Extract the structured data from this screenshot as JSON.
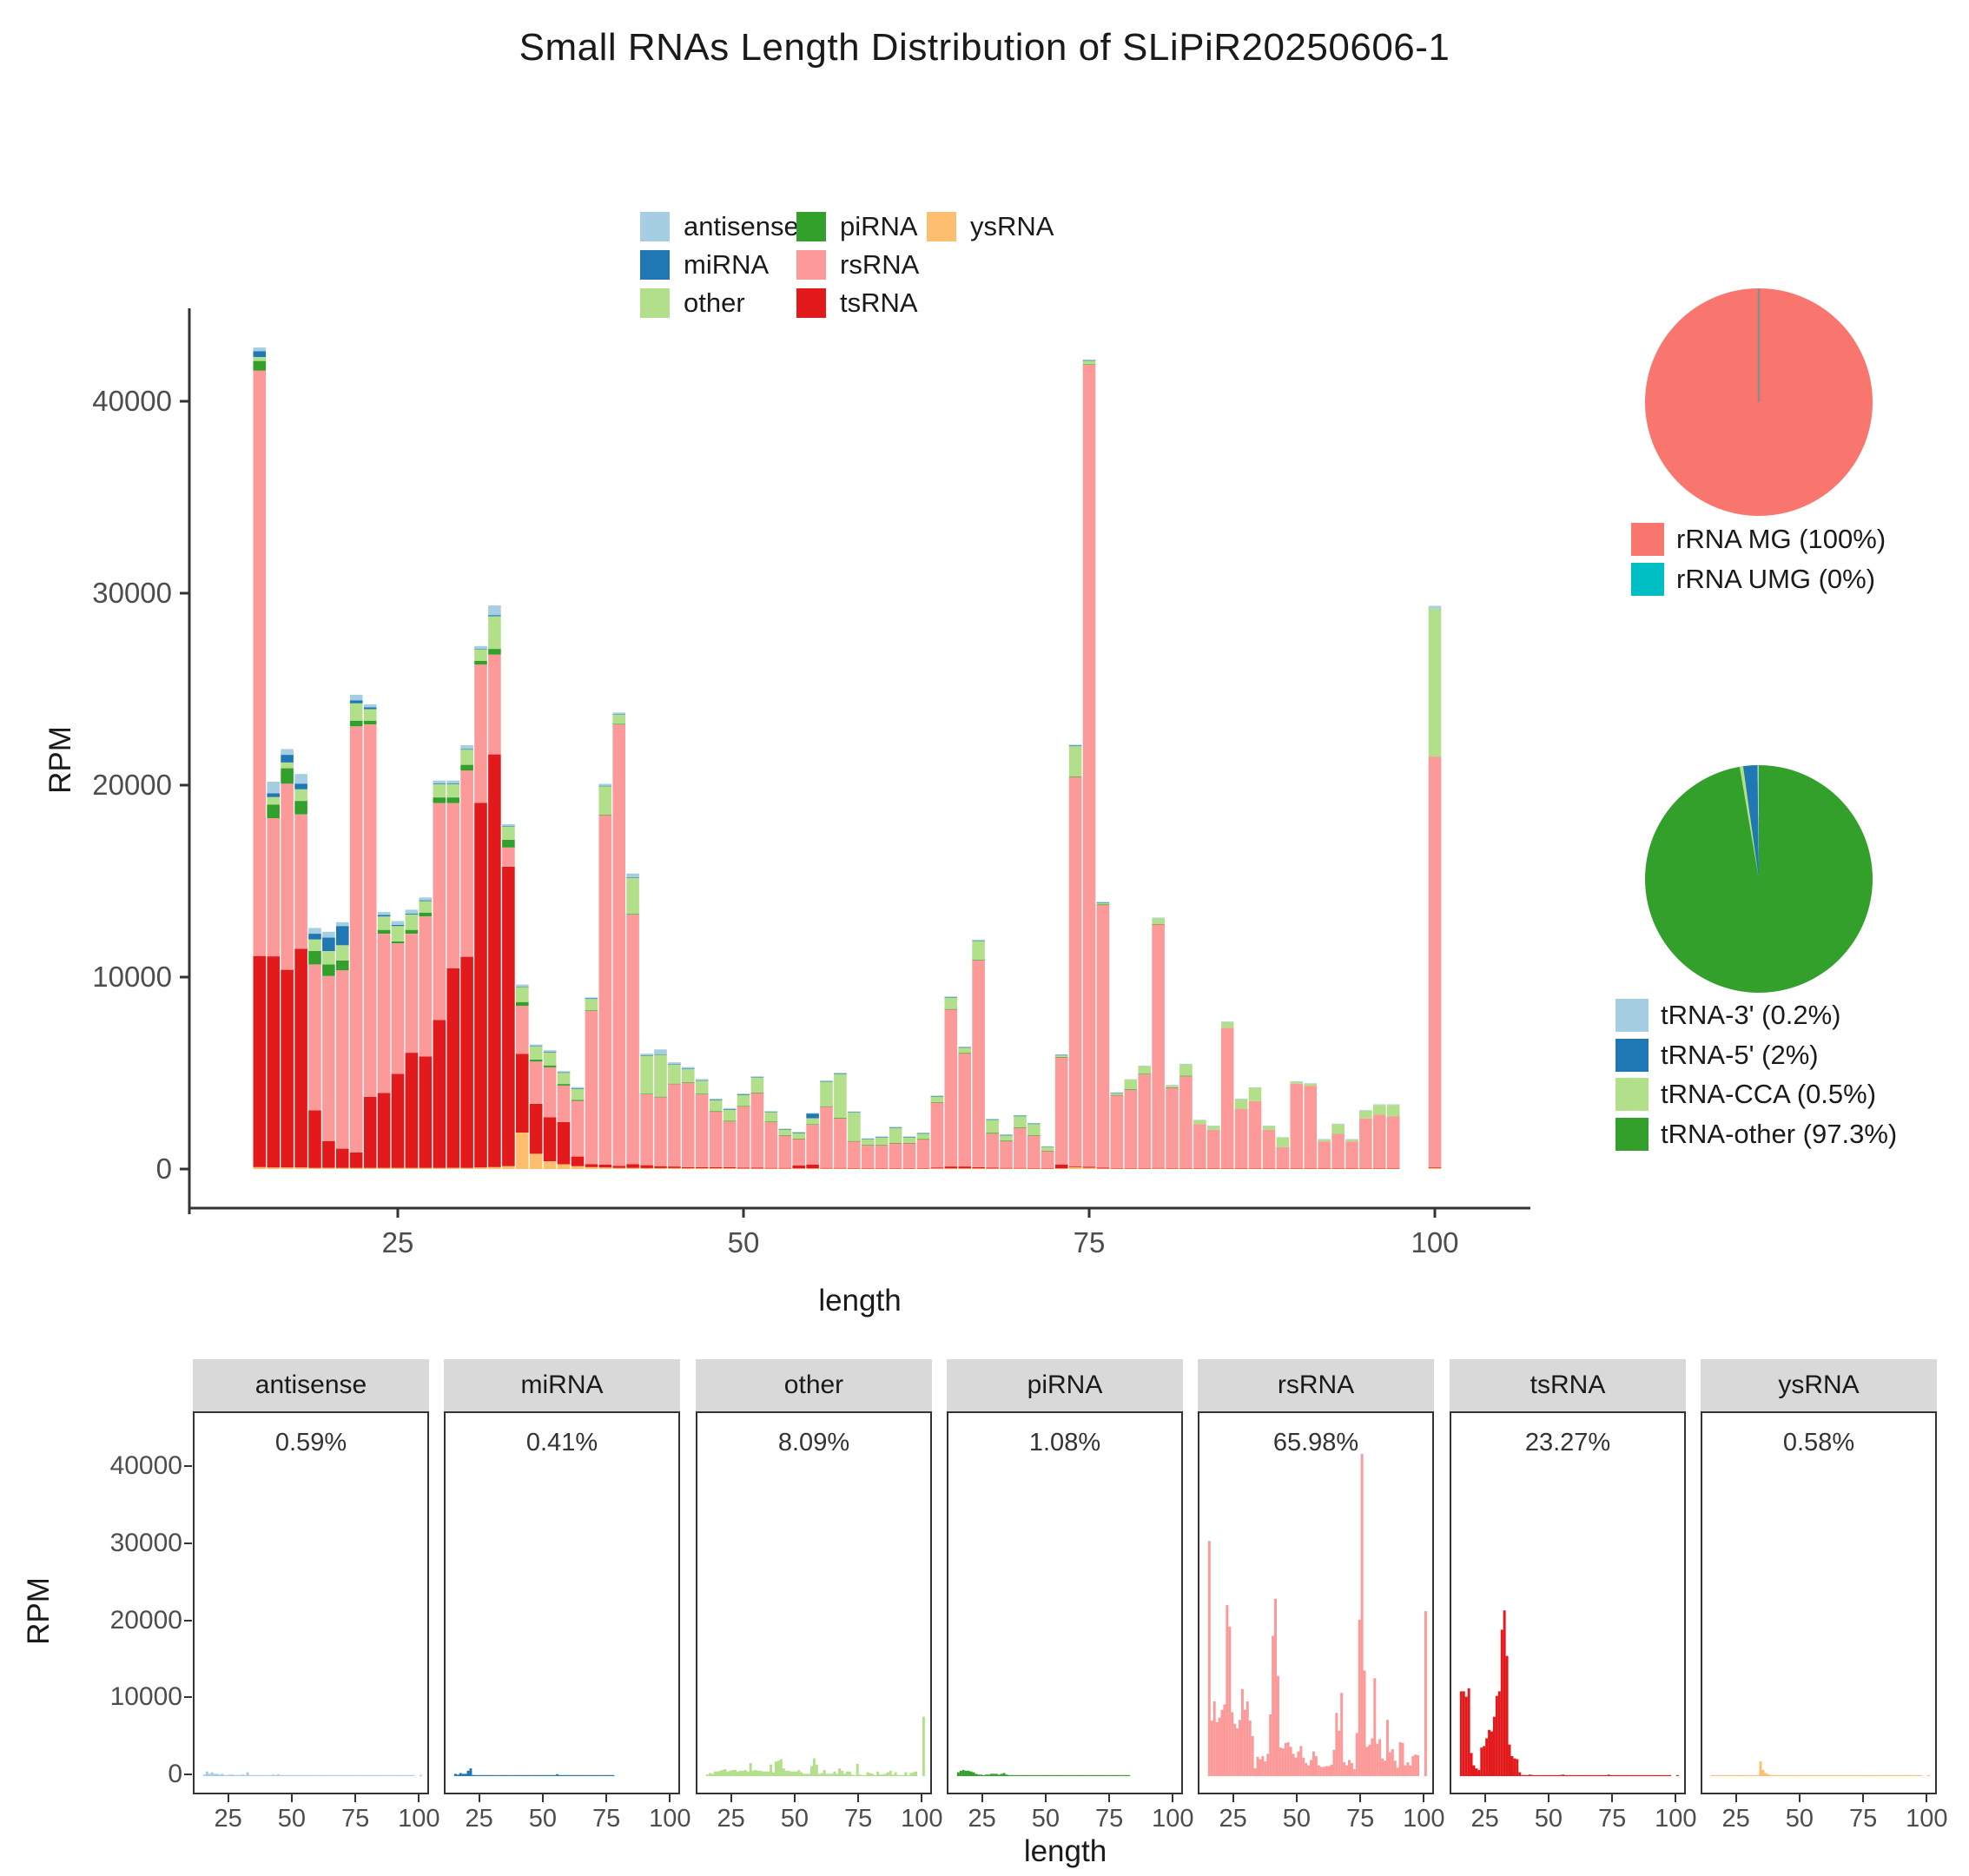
{
  "title": "Small RNAs Length Distribution of SLiPiR20250606-1",
  "colors": {
    "antisense": "#A6CEE3",
    "miRNA": "#1F78B4",
    "other": "#B2DF8A",
    "piRNA": "#33A02C",
    "rsRNA": "#FB9A99",
    "tsRNA": "#E31A1C",
    "ysRNA": "#FDBF6F",
    "rRNA_MG": "#F8766D",
    "rRNA_UMG": "#00BFC4",
    "tRNA_3p": "#A6CEE3",
    "tRNA_5p": "#1F78B4",
    "tRNA_CCA": "#B2DF8A",
    "tRNA_other": "#33A02C",
    "axis_line": "#333333",
    "tick_text": "#4d4d4d",
    "strip_bg": "#D9D9D9",
    "pie_divider": "#8c8c8c"
  },
  "legend": {
    "columns": [
      [
        {
          "label": "antisense",
          "color": "#A6CEE3"
        },
        {
          "label": "miRNA",
          "color": "#1F78B4"
        },
        {
          "label": "other",
          "color": "#B2DF8A"
        }
      ],
      [
        {
          "label": "piRNA",
          "color": "#33A02C"
        },
        {
          "label": "rsRNA",
          "color": "#FB9A99"
        },
        {
          "label": "tsRNA",
          "color": "#E31A1C"
        }
      ],
      [
        {
          "label": "ysRNA",
          "color": "#FDBF6F"
        }
      ]
    ]
  },
  "chart_data": [
    {
      "id": "main_stacked_bar",
      "type": "bar",
      "stacked": true,
      "xlabel": "length",
      "ylabel": "RPM",
      "xticks": [
        25,
        50,
        75,
        100
      ],
      "yticks": [
        0,
        10000,
        20000,
        30000,
        40000
      ],
      "xlim": [
        13,
        102
      ],
      "ylim": [
        0,
        45500
      ],
      "x_start": 15,
      "x": [
        15,
        16,
        17,
        18,
        19,
        20,
        21,
        22,
        23,
        24,
        25,
        26,
        27,
        28,
        29,
        30,
        31,
        32,
        33,
        34,
        35,
        36,
        37,
        38,
        39,
        40,
        41,
        42,
        43,
        44,
        45,
        46,
        47,
        48,
        49,
        50,
        51,
        52,
        53,
        54,
        55,
        56,
        57,
        58,
        59,
        60,
        61,
        62,
        63,
        64,
        65,
        66,
        67,
        68,
        69,
        70,
        71,
        72,
        73,
        74,
        75,
        76,
        77,
        78,
        79,
        80,
        81,
        82,
        83,
        84,
        85,
        86,
        87,
        88,
        89,
        90,
        91,
        92,
        93,
        94,
        95,
        96,
        97,
        98,
        99,
        100
      ],
      "stack_order": [
        "ysRNA",
        "tsRNA",
        "rsRNA",
        "piRNA",
        "other",
        "miRNA",
        "antisense"
      ],
      "series": [
        {
          "name": "antisense",
          "color": "#A6CEE3",
          "values": [
            200,
            600,
            300,
            500,
            300,
            300,
            200,
            300,
            150,
            150,
            200,
            200,
            150,
            150,
            150,
            200,
            150,
            500,
            100,
            100,
            80,
            80,
            60,
            60,
            50,
            100,
            80,
            200,
            80,
            250,
            100,
            80,
            60,
            50,
            50,
            40,
            40,
            40,
            30,
            30,
            30,
            40,
            40,
            30,
            30,
            30,
            30,
            30,
            30,
            30,
            40,
            30,
            40,
            30,
            30,
            30,
            30,
            20,
            20,
            50,
            30,
            30,
            20,
            20,
            20,
            30,
            20,
            20,
            20,
            20,
            30,
            20,
            20,
            20,
            20,
            30,
            30,
            20,
            20,
            20,
            30,
            30,
            30,
            0,
            0,
            150
          ]
        },
        {
          "name": "miRNA",
          "color": "#1F78B4",
          "values": [
            300,
            200,
            400,
            300,
            300,
            700,
            1000,
            150,
            100,
            80,
            60,
            50,
            40,
            30,
            30,
            20,
            20,
            60,
            20,
            10,
            10,
            10,
            10,
            10,
            10,
            10,
            10,
            10,
            10,
            10,
            10,
            10,
            10,
            10,
            10,
            10,
            10,
            10,
            10,
            10,
            250,
            10,
            10,
            10,
            10,
            10,
            10,
            10,
            10,
            10,
            10,
            10,
            10,
            10,
            10,
            10,
            10,
            10,
            10,
            10,
            10,
            10,
            10,
            0,
            0,
            0,
            0,
            0,
            0,
            0,
            0,
            0,
            0,
            0,
            0,
            0,
            0,
            0,
            0,
            0,
            0,
            0,
            0,
            0,
            0,
            0
          ]
        },
        {
          "name": "other",
          "color": "#B2DF8A",
          "values": [
            200,
            400,
            300,
            600,
            600,
            700,
            800,
            900,
            600,
            700,
            800,
            800,
            600,
            700,
            700,
            800,
            600,
            1700,
            700,
            800,
            700,
            700,
            600,
            600,
            600,
            1500,
            500,
            1900,
            2000,
            2200,
            1000,
            700,
            700,
            600,
            600,
            600,
            800,
            500,
            300,
            300,
            300,
            1300,
            2300,
            1500,
            300,
            400,
            800,
            300,
            300,
            300,
            600,
            300,
            1000,
            700,
            300,
            600,
            600,
            200,
            100,
            1600,
            200,
            100,
            100,
            500,
            400,
            300,
            100,
            600,
            200,
            200,
            300,
            500,
            700,
            200,
            500,
            100,
            100,
            100,
            500,
            100,
            400,
            500,
            600,
            0,
            0,
            7700
          ]
        },
        {
          "name": "piRNA",
          "color": "#33A02C",
          "values": [
            500,
            700,
            800,
            700,
            700,
            600,
            500,
            300,
            200,
            200,
            100,
            200,
            200,
            300,
            300,
            300,
            200,
            300,
            400,
            200,
            100,
            100,
            80,
            50,
            30,
            30,
            30,
            30,
            20,
            20,
            20,
            20,
            20,
            20,
            20,
            10,
            10,
            10,
            10,
            10,
            10,
            10,
            10,
            10,
            10,
            10,
            10,
            10,
            10,
            10,
            10,
            10,
            10,
            10,
            10,
            10,
            10,
            10,
            10,
            10,
            10,
            10,
            10,
            10,
            10,
            10,
            10,
            10,
            0,
            0,
            0,
            0,
            0,
            0,
            0,
            0,
            0,
            0,
            0,
            0,
            0,
            0,
            0,
            0,
            0,
            0
          ]
        },
        {
          "name": "rsRNA",
          "color": "#FB9A99",
          "values": [
            30500,
            7200,
            9700,
            7000,
            7600,
            8600,
            9300,
            22200,
            19400,
            8300,
            6800,
            6200,
            7300,
            11300,
            8600,
            9700,
            7200,
            5200,
            1000,
            2500,
            2200,
            2600,
            1900,
            2900,
            8000,
            18200,
            23000,
            13000,
            3700,
            3600,
            4300,
            4400,
            3800,
            2900,
            2400,
            3200,
            3900,
            2400,
            1700,
            1400,
            2100,
            3200,
            2600,
            1400,
            1200,
            1200,
            1300,
            1300,
            1500,
            3400,
            8200,
            5900,
            10800,
            1800,
            1400,
            2100,
            1700,
            900,
            5600,
            20300,
            41800,
            13700,
            3800,
            4100,
            4900,
            12700,
            4200,
            4800,
            2300,
            2000,
            7300,
            3100,
            3500,
            2000,
            1100,
            4400,
            4300,
            1400,
            1800,
            1400,
            2600,
            2800,
            2700,
            0,
            0,
            21400
          ]
        },
        {
          "name": "tsRNA",
          "color": "#E31A1C",
          "values": [
            11000,
            11000,
            10300,
            11400,
            3000,
            1400,
            1000,
            800,
            3700,
            3900,
            4900,
            6000,
            5800,
            7700,
            10400,
            11000,
            19000,
            21500,
            15600,
            4100,
            2600,
            2300,
            2200,
            500,
            150,
            150,
            100,
            200,
            150,
            100,
            80,
            60,
            60,
            50,
            50,
            40,
            40,
            30,
            30,
            150,
            200,
            30,
            30,
            20,
            20,
            20,
            20,
            20,
            20,
            50,
            100,
            100,
            60,
            40,
            30,
            30,
            20,
            20,
            200,
            40,
            60,
            40,
            20,
            20,
            20,
            30,
            20,
            20,
            10,
            10,
            20,
            10,
            10,
            10,
            10,
            10,
            10,
            10,
            10,
            10,
            10,
            10,
            10,
            0,
            0,
            30
          ]
        },
        {
          "name": "ysRNA",
          "color": "#FDBF6F",
          "values": [
            100,
            80,
            80,
            80,
            60,
            60,
            60,
            60,
            60,
            60,
            60,
            60,
            60,
            60,
            60,
            60,
            80,
            100,
            150,
            1900,
            800,
            400,
            250,
            150,
            100,
            80,
            60,
            60,
            50,
            50,
            50,
            40,
            40,
            40,
            40,
            30,
            30,
            30,
            30,
            30,
            30,
            30,
            30,
            30,
            30,
            30,
            30,
            30,
            30,
            30,
            30,
            30,
            30,
            30,
            30,
            30,
            30,
            30,
            30,
            100,
            60,
            30,
            30,
            30,
            30,
            30,
            30,
            30,
            30,
            30,
            30,
            30,
            30,
            30,
            30,
            30,
            30,
            30,
            30,
            30,
            30,
            30,
            30,
            0,
            0,
            60
          ]
        }
      ]
    },
    {
      "id": "pie_rrna",
      "type": "pie",
      "slices": [
        {
          "label": "rRNA MG (100%)",
          "value": 99.95,
          "color": "#F8766D"
        },
        {
          "label": "rRNA UMG (0%)",
          "value": 0.05,
          "color": "#00BFC4"
        }
      ],
      "legend_position": "bottom"
    },
    {
      "id": "pie_trna",
      "type": "pie",
      "slices": [
        {
          "label": "tRNA-3' (0.2%)",
          "value": 0.2,
          "color": "#A6CEE3"
        },
        {
          "label": "tRNA-5' (2%)",
          "value": 2,
          "color": "#1F78B4"
        },
        {
          "label": "tRNA-CCA (0.5%)",
          "value": 0.5,
          "color": "#B2DF8A"
        },
        {
          "label": "tRNA-other (97.3%)",
          "value": 97.3,
          "color": "#33A02C"
        }
      ],
      "legend_position": "bottom"
    },
    {
      "id": "facet_small_multiples",
      "type": "bar",
      "small_multiples": true,
      "xlabel": "length",
      "ylabel": "RPM",
      "xticks": [
        25,
        50,
        75,
        100
      ],
      "yticks": [
        0,
        10000,
        20000,
        30000,
        40000
      ],
      "ylim": [
        0,
        47000
      ],
      "facets": [
        {
          "name": "antisense",
          "percent": "0.59%"
        },
        {
          "name": "miRNA",
          "percent": "0.41%"
        },
        {
          "name": "other",
          "percent": "8.09%"
        },
        {
          "name": "piRNA",
          "percent": "1.08%"
        },
        {
          "name": "rsRNA",
          "percent": "65.98%"
        },
        {
          "name": "tsRNA",
          "percent": "23.27%"
        },
        {
          "name": "ysRNA",
          "percent": "0.58%"
        }
      ]
    }
  ]
}
